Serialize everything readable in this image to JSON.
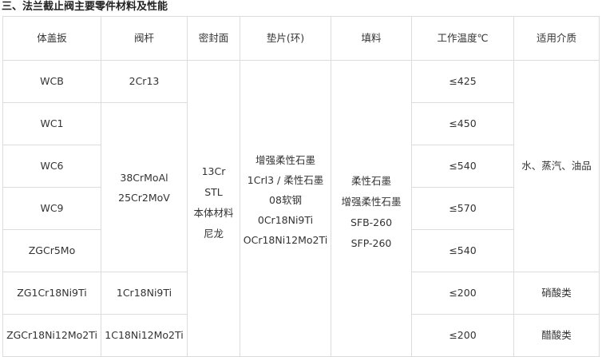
{
  "title": "三、法兰截止阀主要零件材料及性能",
  "table": {
    "headers": [
      "体盖扳",
      "阀杆",
      "密封面",
      "垫片(环)",
      "填料",
      "工作温度℃",
      "适用介质"
    ],
    "body_material": [
      "WCB",
      "WC1",
      "WC6",
      "WC9",
      "ZGCr5Mo",
      "ZG1Cr18Ni9Ti",
      "ZGCr18Ni12Mo2Ti"
    ],
    "stem": {
      "row1": "2Cr13",
      "rows2_5": [
        "38CrMoAl",
        "25Cr2MoV"
      ],
      "row6": "1Cr18Ni9Ti",
      "row7": "1C18Ni12Mo2Ti"
    },
    "sealing_face": [
      "13Cr",
      "STL",
      "本体材料",
      "尼龙"
    ],
    "gasket": [
      "增强柔性石墨",
      "1Crl3 / 柔性石墨",
      "08软钢",
      "0Cr18Ni9Ti",
      "OCr18Ni12Mo2Ti"
    ],
    "packing": [
      "柔性石墨",
      "增强柔性石墨",
      "SFB-260",
      "SFP-260"
    ],
    "temperature": [
      "≤425",
      "≤450",
      "≤540",
      "≤570",
      "≤540",
      "≤200",
      "≤200"
    ],
    "medium": {
      "rows1_5": "水、蒸汽、油品",
      "row6": "硝酸类",
      "row7": "醋酸类"
    }
  }
}
